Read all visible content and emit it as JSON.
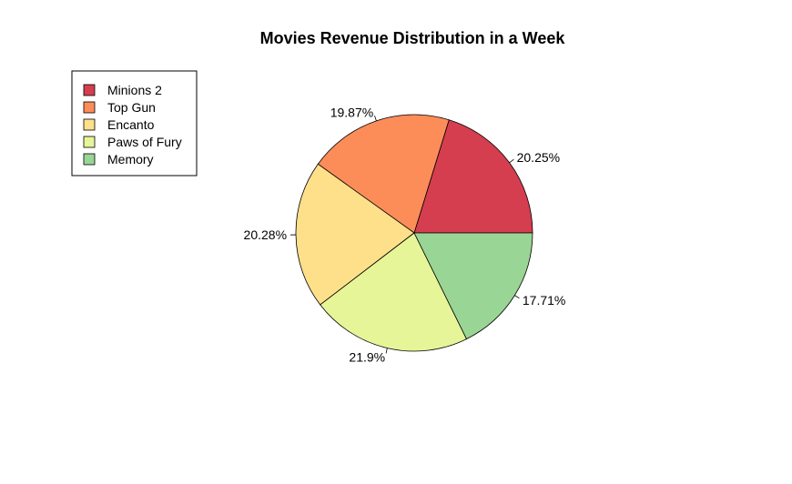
{
  "chart_data": {
    "type": "pie",
    "title": "Movies Revenue Distribution in a Week",
    "categories": [
      "Minions 2",
      "Top Gun",
      "Encanto",
      "Paws of Fury",
      "Memory"
    ],
    "values": [
      20.25,
      19.87,
      20.28,
      21.9,
      17.71
    ],
    "labels": [
      "20.25%",
      "19.87%",
      "20.28%",
      "21.9%",
      "17.71%"
    ],
    "colors": [
      "#D53E4F",
      "#FC8D59",
      "#FEE08B",
      "#E6F598",
      "#99D594"
    ],
    "legend": {
      "position": "top-left",
      "items": [
        "Minions 2",
        "Top Gun",
        "Encanto",
        "Paws of Fury",
        "Memory"
      ]
    },
    "start_angle_deg": 0,
    "direction": "counterclockwise"
  }
}
